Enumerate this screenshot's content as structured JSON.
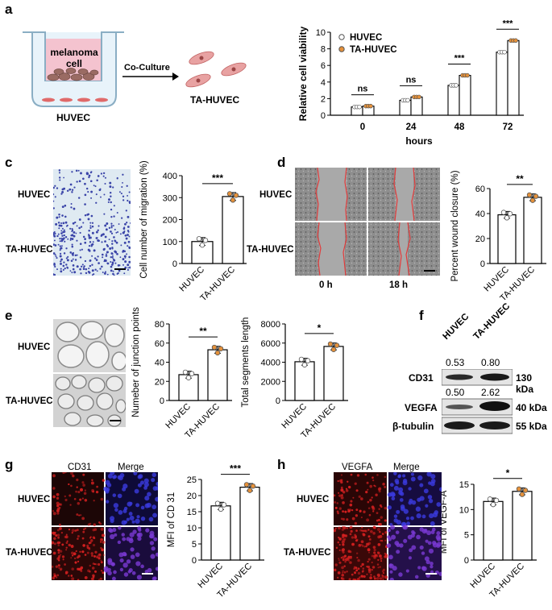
{
  "panels": {
    "a": {
      "letter": "a",
      "insert_label": "melanoma\ncell",
      "arrow_label": "Co-Culture",
      "bottom_label": "HUVEC",
      "right_label": "TA-HUVEC"
    },
    "c": {
      "letter": "c",
      "rows": [
        "HUVEC",
        "TA-HUVEC"
      ]
    },
    "d": {
      "letter": "d",
      "rows": [
        "HUVEC",
        "TA-HUVEC"
      ],
      "cols": [
        "0 h",
        "18 h"
      ]
    },
    "e": {
      "letter": "e",
      "rows": [
        "HUVEC",
        "TA-HUVEC"
      ]
    },
    "f": {
      "letter": "f",
      "lanes": [
        "HUVEC",
        "TA-HUVEC"
      ],
      "bands": [
        {
          "name": "CD31",
          "size": "130 kDa",
          "ratios": [
            "0.53",
            "0.80"
          ]
        },
        {
          "name": "VEGFA",
          "size": "40 kDa",
          "ratios": [
            "0.50",
            "2.62"
          ]
        },
        {
          "name": "β-tubulin",
          "size": "55 kDa",
          "ratios": []
        }
      ]
    },
    "g": {
      "letter": "g",
      "cols": [
        "CD31",
        "Merge"
      ],
      "rows": [
        "HUVEC",
        "TA-HUVEC"
      ]
    },
    "h": {
      "letter": "h",
      "cols": [
        "VEGFA",
        "Merge"
      ],
      "rows": [
        "HUVEC",
        "TA-HUVEC"
      ]
    }
  },
  "colors": {
    "huvec": "#ffffff",
    "ta_huvec": "#e5913a",
    "red_stain": "#d42020",
    "blue_stain": "#3b3bd4",
    "wound_edge": "#e23b3b"
  },
  "chart_data": [
    {
      "id": "b",
      "letter": "b",
      "type": "bar",
      "categories": [
        "0",
        "24",
        "48",
        "72"
      ],
      "xlabel": "hours",
      "ylabel": "Relative cell viability",
      "ylim": [
        0,
        10
      ],
      "yticks": [
        0,
        2,
        4,
        6,
        8,
        10
      ],
      "legend": "top-left",
      "series": [
        {
          "name": "HUVEC",
          "values": [
            1.0,
            1.8,
            3.6,
            7.6
          ]
        },
        {
          "name": "TA-HUVEC",
          "values": [
            1.1,
            2.2,
            4.8,
            9.0
          ]
        }
      ],
      "significance": [
        "ns",
        "ns",
        "***",
        "***"
      ]
    },
    {
      "id": "c",
      "type": "bar",
      "categories": [
        "HUVEC",
        "TA-HUVEC"
      ],
      "values": [
        100,
        305
      ],
      "ylabel": "Cell number of migration (%)",
      "ylim": [
        0,
        400
      ],
      "yticks": [
        0,
        100,
        200,
        300,
        400
      ],
      "significance": "***"
    },
    {
      "id": "d",
      "type": "bar",
      "categories": [
        "HUVEC",
        "TA-HUVEC"
      ],
      "values": [
        39,
        53
      ],
      "ylabel": "Percent wound closure (%)",
      "ylim": [
        0,
        60
      ],
      "yticks": [
        0,
        20,
        40,
        60
      ],
      "significance": "**"
    },
    {
      "id": "e1",
      "type": "bar",
      "categories": [
        "HUVEC",
        "TA-HUVEC"
      ],
      "values": [
        27,
        53
      ],
      "ylabel": "Numeber of junction points",
      "ylim": [
        0,
        80
      ],
      "yticks": [
        0,
        20,
        40,
        60,
        80
      ],
      "significance": "**"
    },
    {
      "id": "e2",
      "type": "bar",
      "categories": [
        "HUVEC",
        "TA-HUVEC"
      ],
      "values": [
        4050,
        5650
      ],
      "ylabel": "Total segments length",
      "ylim": [
        0,
        8000
      ],
      "yticks": [
        0,
        2000,
        4000,
        6000,
        8000
      ],
      "significance": "*"
    },
    {
      "id": "g",
      "type": "bar",
      "categories": [
        "HUVEC",
        "TA-HUVEC"
      ],
      "values": [
        16.8,
        22.6
      ],
      "ylabel": "MFI of CD 31",
      "ylim": [
        0,
        25
      ],
      "yticks": [
        0,
        5,
        10,
        15,
        20,
        25
      ],
      "significance": "***"
    },
    {
      "id": "h",
      "type": "bar",
      "categories": [
        "HUVEC",
        "TA-HUVEC"
      ],
      "values": [
        11.6,
        13.6
      ],
      "ylabel": "MFI of VEGF-A",
      "ylim": [
        0,
        15
      ],
      "yticks": [
        0,
        5,
        10,
        15
      ],
      "significance": "*"
    }
  ]
}
